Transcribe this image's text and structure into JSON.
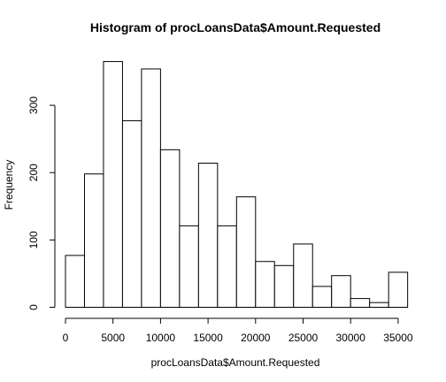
{
  "chart_data": {
    "type": "bar",
    "title": "Histogram of procLoansData$Amount.Requested",
    "xlabel": "procLoansData$Amount.Requested",
    "ylabel": "Frequency",
    "bin_width": 2000,
    "bins": [
      {
        "start": 0,
        "end": 2000,
        "count": 77
      },
      {
        "start": 2000,
        "end": 4000,
        "count": 198
      },
      {
        "start": 4000,
        "end": 6000,
        "count": 365
      },
      {
        "start": 6000,
        "end": 8000,
        "count": 277
      },
      {
        "start": 8000,
        "end": 10000,
        "count": 354
      },
      {
        "start": 10000,
        "end": 12000,
        "count": 234
      },
      {
        "start": 12000,
        "end": 14000,
        "count": 121
      },
      {
        "start": 14000,
        "end": 16000,
        "count": 214
      },
      {
        "start": 16000,
        "end": 18000,
        "count": 121
      },
      {
        "start": 18000,
        "end": 20000,
        "count": 164
      },
      {
        "start": 20000,
        "end": 22000,
        "count": 68
      },
      {
        "start": 22000,
        "end": 24000,
        "count": 62
      },
      {
        "start": 24000,
        "end": 26000,
        "count": 94
      },
      {
        "start": 26000,
        "end": 28000,
        "count": 31
      },
      {
        "start": 28000,
        "end": 30000,
        "count": 47
      },
      {
        "start": 30000,
        "end": 32000,
        "count": 13
      },
      {
        "start": 32000,
        "end": 34000,
        "count": 7
      },
      {
        "start": 34000,
        "end": 36000,
        "count": 52
      }
    ],
    "xticks": [
      "0",
      "5000",
      "10000",
      "15000",
      "20000",
      "25000",
      "30000",
      "35000"
    ],
    "yticks": [
      "0",
      "100",
      "200",
      "300"
    ],
    "xlim": [
      0,
      36000
    ],
    "ylim": [
      0,
      365
    ],
    "grid": false,
    "legend": "none"
  }
}
